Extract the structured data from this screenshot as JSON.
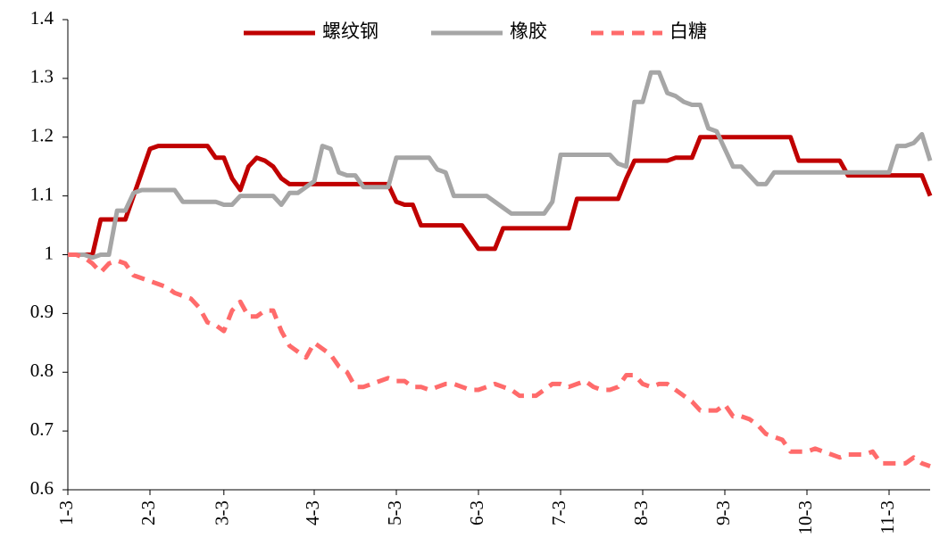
{
  "chart_data": {
    "type": "line",
    "categories": [
      "1-3",
      null,
      null,
      null,
      null,
      null,
      null,
      null,
      null,
      null,
      "2-3",
      null,
      null,
      null,
      null,
      null,
      null,
      null,
      null,
      "3-3",
      null,
      null,
      null,
      null,
      null,
      null,
      null,
      null,
      null,
      null,
      "4-3",
      null,
      null,
      null,
      null,
      null,
      null,
      null,
      null,
      null,
      "5-3",
      null,
      null,
      null,
      null,
      null,
      null,
      null,
      null,
      null,
      "6-3",
      null,
      null,
      null,
      null,
      null,
      null,
      null,
      null,
      null,
      "7-3",
      null,
      null,
      null,
      null,
      null,
      null,
      null,
      null,
      null,
      "8-3",
      null,
      null,
      null,
      null,
      null,
      null,
      null,
      null,
      null,
      "9-3",
      null,
      null,
      null,
      null,
      null,
      null,
      null,
      null,
      null,
      "10-3",
      null,
      null,
      null,
      null,
      null,
      null,
      null,
      null,
      null,
      "11-3",
      null,
      null,
      null,
      null,
      null
    ],
    "series": [
      {
        "name": "螺纹钢",
        "color": "#c00000",
        "dashed": false,
        "values": [
          1,
          1,
          1,
          1,
          1.06,
          1.06,
          1.06,
          1.06,
          1.1,
          1.14,
          1.18,
          1.185,
          1.185,
          1.185,
          1.185,
          1.185,
          1.185,
          1.185,
          1.165,
          1.165,
          1.13,
          1.11,
          1.15,
          1.165,
          1.16,
          1.15,
          1.13,
          1.12,
          1.12,
          1.12,
          1.12,
          1.12,
          1.12,
          1.12,
          1.12,
          1.12,
          1.12,
          1.12,
          1.12,
          1.12,
          1.09,
          1.085,
          1.085,
          1.05,
          1.05,
          1.05,
          1.05,
          1.05,
          1.05,
          1.03,
          1.01,
          1.01,
          1.01,
          1.045,
          1.045,
          1.045,
          1.045,
          1.045,
          1.045,
          1.045,
          1.045,
          1.045,
          1.095,
          1.095,
          1.095,
          1.095,
          1.095,
          1.095,
          1.13,
          1.16,
          1.16,
          1.16,
          1.16,
          1.16,
          1.165,
          1.165,
          1.165,
          1.2,
          1.2,
          1.2,
          1.2,
          1.2,
          1.2,
          1.2,
          1.2,
          1.2,
          1.2,
          1.2,
          1.2,
          1.16,
          1.16,
          1.16,
          1.16,
          1.16,
          1.16,
          1.135,
          1.135,
          1.135,
          1.135,
          1.135,
          1.135,
          1.135,
          1.135,
          1.135,
          1.135,
          1.1
        ]
      },
      {
        "name": "橡胶",
        "color": "#a6a6a6",
        "dashed": false,
        "values": [
          1,
          1,
          1,
          0.995,
          1,
          1,
          1.075,
          1.075,
          1.105,
          1.11,
          1.11,
          1.11,
          1.11,
          1.11,
          1.09,
          1.09,
          1.09,
          1.09,
          1.09,
          1.085,
          1.085,
          1.1,
          1.1,
          1.1,
          1.1,
          1.1,
          1.085,
          1.105,
          1.105,
          1.115,
          1.125,
          1.185,
          1.18,
          1.14,
          1.135,
          1.135,
          1.115,
          1.115,
          1.115,
          1.115,
          1.165,
          1.165,
          1.165,
          1.165,
          1.165,
          1.145,
          1.14,
          1.1,
          1.1,
          1.1,
          1.1,
          1.1,
          1.09,
          1.08,
          1.07,
          1.07,
          1.07,
          1.07,
          1.07,
          1.09,
          1.17,
          1.17,
          1.17,
          1.17,
          1.17,
          1.17,
          1.17,
          1.155,
          1.15,
          1.26,
          1.26,
          1.31,
          1.31,
          1.275,
          1.27,
          1.26,
          1.255,
          1.255,
          1.215,
          1.21,
          1.18,
          1.15,
          1.15,
          1.135,
          1.12,
          1.12,
          1.14,
          1.14,
          1.14,
          1.14,
          1.14,
          1.14,
          1.14,
          1.14,
          1.14,
          1.14,
          1.14,
          1.14,
          1.14,
          1.14,
          1.14,
          1.185,
          1.185,
          1.19,
          1.205,
          1.16
        ]
      },
      {
        "name": "白糖",
        "color": "#ff6b6b",
        "dashed": true,
        "values": [
          1,
          1,
          0.995,
          0.985,
          0.97,
          0.985,
          0.99,
          0.985,
          0.965,
          0.96,
          0.955,
          0.95,
          0.945,
          0.935,
          0.93,
          0.925,
          0.91,
          0.885,
          0.88,
          0.87,
          0.905,
          0.92,
          0.895,
          0.895,
          0.905,
          0.905,
          0.87,
          0.845,
          0.835,
          0.825,
          0.85,
          0.84,
          0.83,
          0.81,
          0.8,
          0.775,
          0.775,
          0.78,
          0.785,
          0.79,
          0.785,
          0.785,
          0.775,
          0.775,
          0.77,
          0.775,
          0.78,
          0.78,
          0.775,
          0.77,
          0.77,
          0.775,
          0.78,
          0.775,
          0.77,
          0.76,
          0.76,
          0.76,
          0.77,
          0.78,
          0.78,
          0.775,
          0.78,
          0.785,
          0.775,
          0.77,
          0.77,
          0.775,
          0.795,
          0.795,
          0.78,
          0.775,
          0.78,
          0.78,
          0.77,
          0.76,
          0.75,
          0.735,
          0.735,
          0.735,
          0.745,
          0.725,
          0.725,
          0.72,
          0.71,
          0.695,
          0.69,
          0.685,
          0.665,
          0.665,
          0.665,
          0.67,
          0.665,
          0.66,
          0.655,
          0.66,
          0.66,
          0.66,
          0.665,
          0.645,
          0.645,
          0.645,
          0.645,
          0.655,
          0.645,
          0.64
        ]
      }
    ],
    "ylim": [
      0.6,
      1.4
    ],
    "yticks": [
      0.6,
      0.7,
      0.8,
      0.9,
      1,
      1.1,
      1.2,
      1.3,
      1.4
    ],
    "grid": false,
    "legend": "top"
  }
}
